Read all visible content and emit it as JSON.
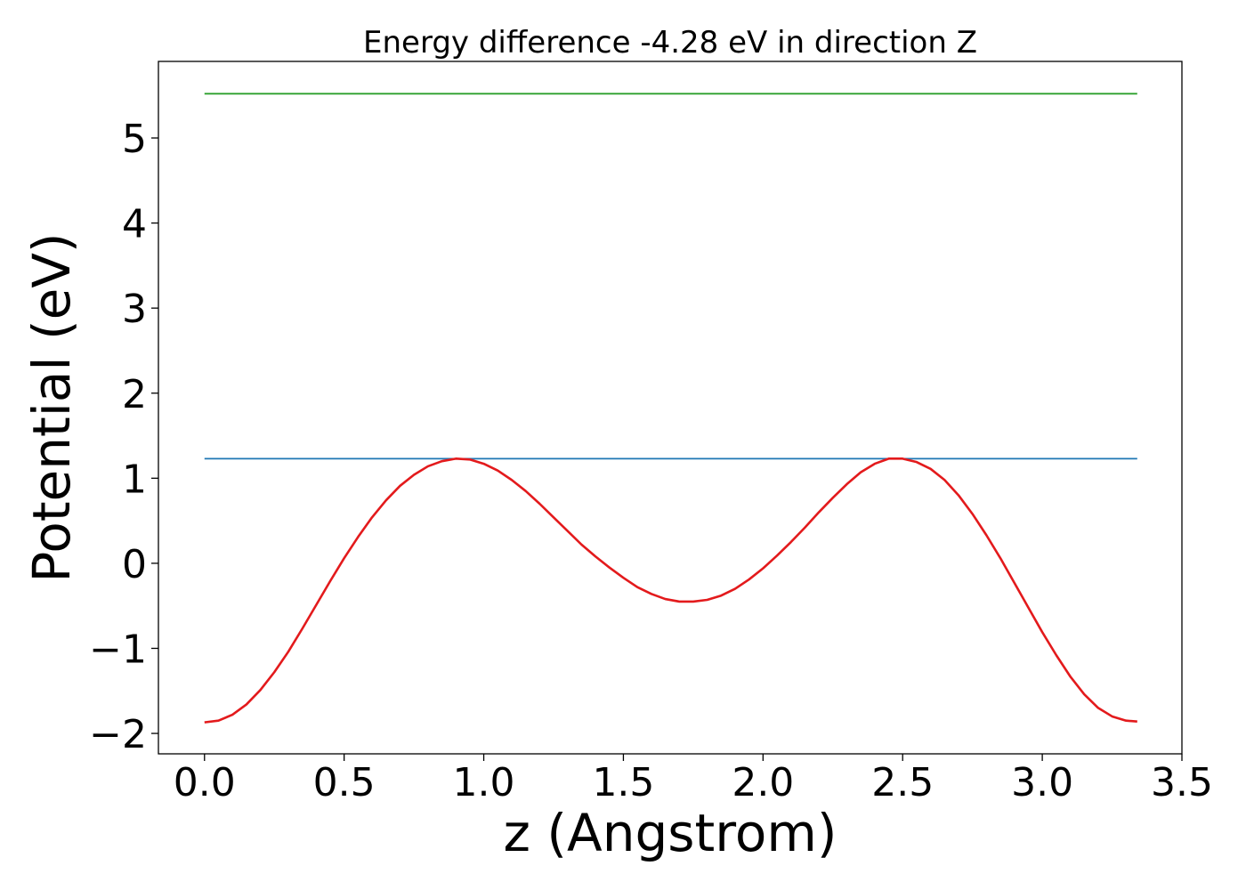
{
  "chart_data": {
    "type": "line",
    "title": "Energy difference -4.28 eV in direction Z",
    "xlabel": "z (Angstrom)",
    "ylabel": "Potential (eV)",
    "xlim": [
      -0.165,
      3.5
    ],
    "ylim": [
      -2.24,
      5.9
    ],
    "xticks": [
      0.0,
      0.5,
      1.0,
      1.5,
      2.0,
      2.5,
      3.0,
      3.5
    ],
    "xtick_labels": [
      "0.0",
      "0.5",
      "1.0",
      "1.5",
      "2.0",
      "2.5",
      "3.0",
      "3.5"
    ],
    "yticks": [
      -2,
      -1,
      0,
      1,
      2,
      3,
      4,
      5
    ],
    "ytick_labels": [
      "−2",
      "−1",
      "0",
      "1",
      "2",
      "3",
      "4",
      "5"
    ],
    "grid": false,
    "legend": "none",
    "series": [
      {
        "color": "#2ca02c",
        "x": [
          0.0,
          3.34
        ],
        "y": [
          5.52,
          5.52
        ]
      },
      {
        "color": "#1f77b4",
        "x": [
          0.0,
          3.34
        ],
        "y": [
          1.23,
          1.23
        ]
      },
      {
        "color": "#e31a1c",
        "x": [
          0.0,
          0.05,
          0.1,
          0.15,
          0.2,
          0.25,
          0.3,
          0.35,
          0.4,
          0.45,
          0.5,
          0.55,
          0.6,
          0.65,
          0.7,
          0.75,
          0.8,
          0.85,
          0.9,
          0.95,
          1.0,
          1.05,
          1.1,
          1.15,
          1.2,
          1.25,
          1.3,
          1.35,
          1.4,
          1.45,
          1.5,
          1.55,
          1.6,
          1.65,
          1.7,
          1.75,
          1.8,
          1.85,
          1.9,
          1.95,
          2.0,
          2.05,
          2.1,
          2.15,
          2.2,
          2.25,
          2.3,
          2.35,
          2.4,
          2.45,
          2.5,
          2.55,
          2.6,
          2.65,
          2.7,
          2.75,
          2.8,
          2.85,
          2.9,
          2.95,
          3.0,
          3.05,
          3.1,
          3.15,
          3.2,
          3.25,
          3.3,
          3.34
        ],
        "y": [
          -1.87,
          -1.85,
          -1.78,
          -1.66,
          -1.49,
          -1.28,
          -1.04,
          -0.77,
          -0.49,
          -0.21,
          0.06,
          0.31,
          0.54,
          0.74,
          0.91,
          1.04,
          1.14,
          1.2,
          1.23,
          1.22,
          1.17,
          1.09,
          0.98,
          0.85,
          0.7,
          0.54,
          0.38,
          0.22,
          0.08,
          -0.05,
          -0.17,
          -0.28,
          -0.36,
          -0.42,
          -0.45,
          -0.45,
          -0.43,
          -0.38,
          -0.3,
          -0.19,
          -0.06,
          0.09,
          0.25,
          0.42,
          0.6,
          0.77,
          0.93,
          1.07,
          1.17,
          1.23,
          1.23,
          1.19,
          1.11,
          0.98,
          0.8,
          0.58,
          0.33,
          0.06,
          -0.23,
          -0.52,
          -0.81,
          -1.08,
          -1.33,
          -1.54,
          -1.7,
          -1.8,
          -1.85,
          -1.86
        ]
      }
    ]
  }
}
